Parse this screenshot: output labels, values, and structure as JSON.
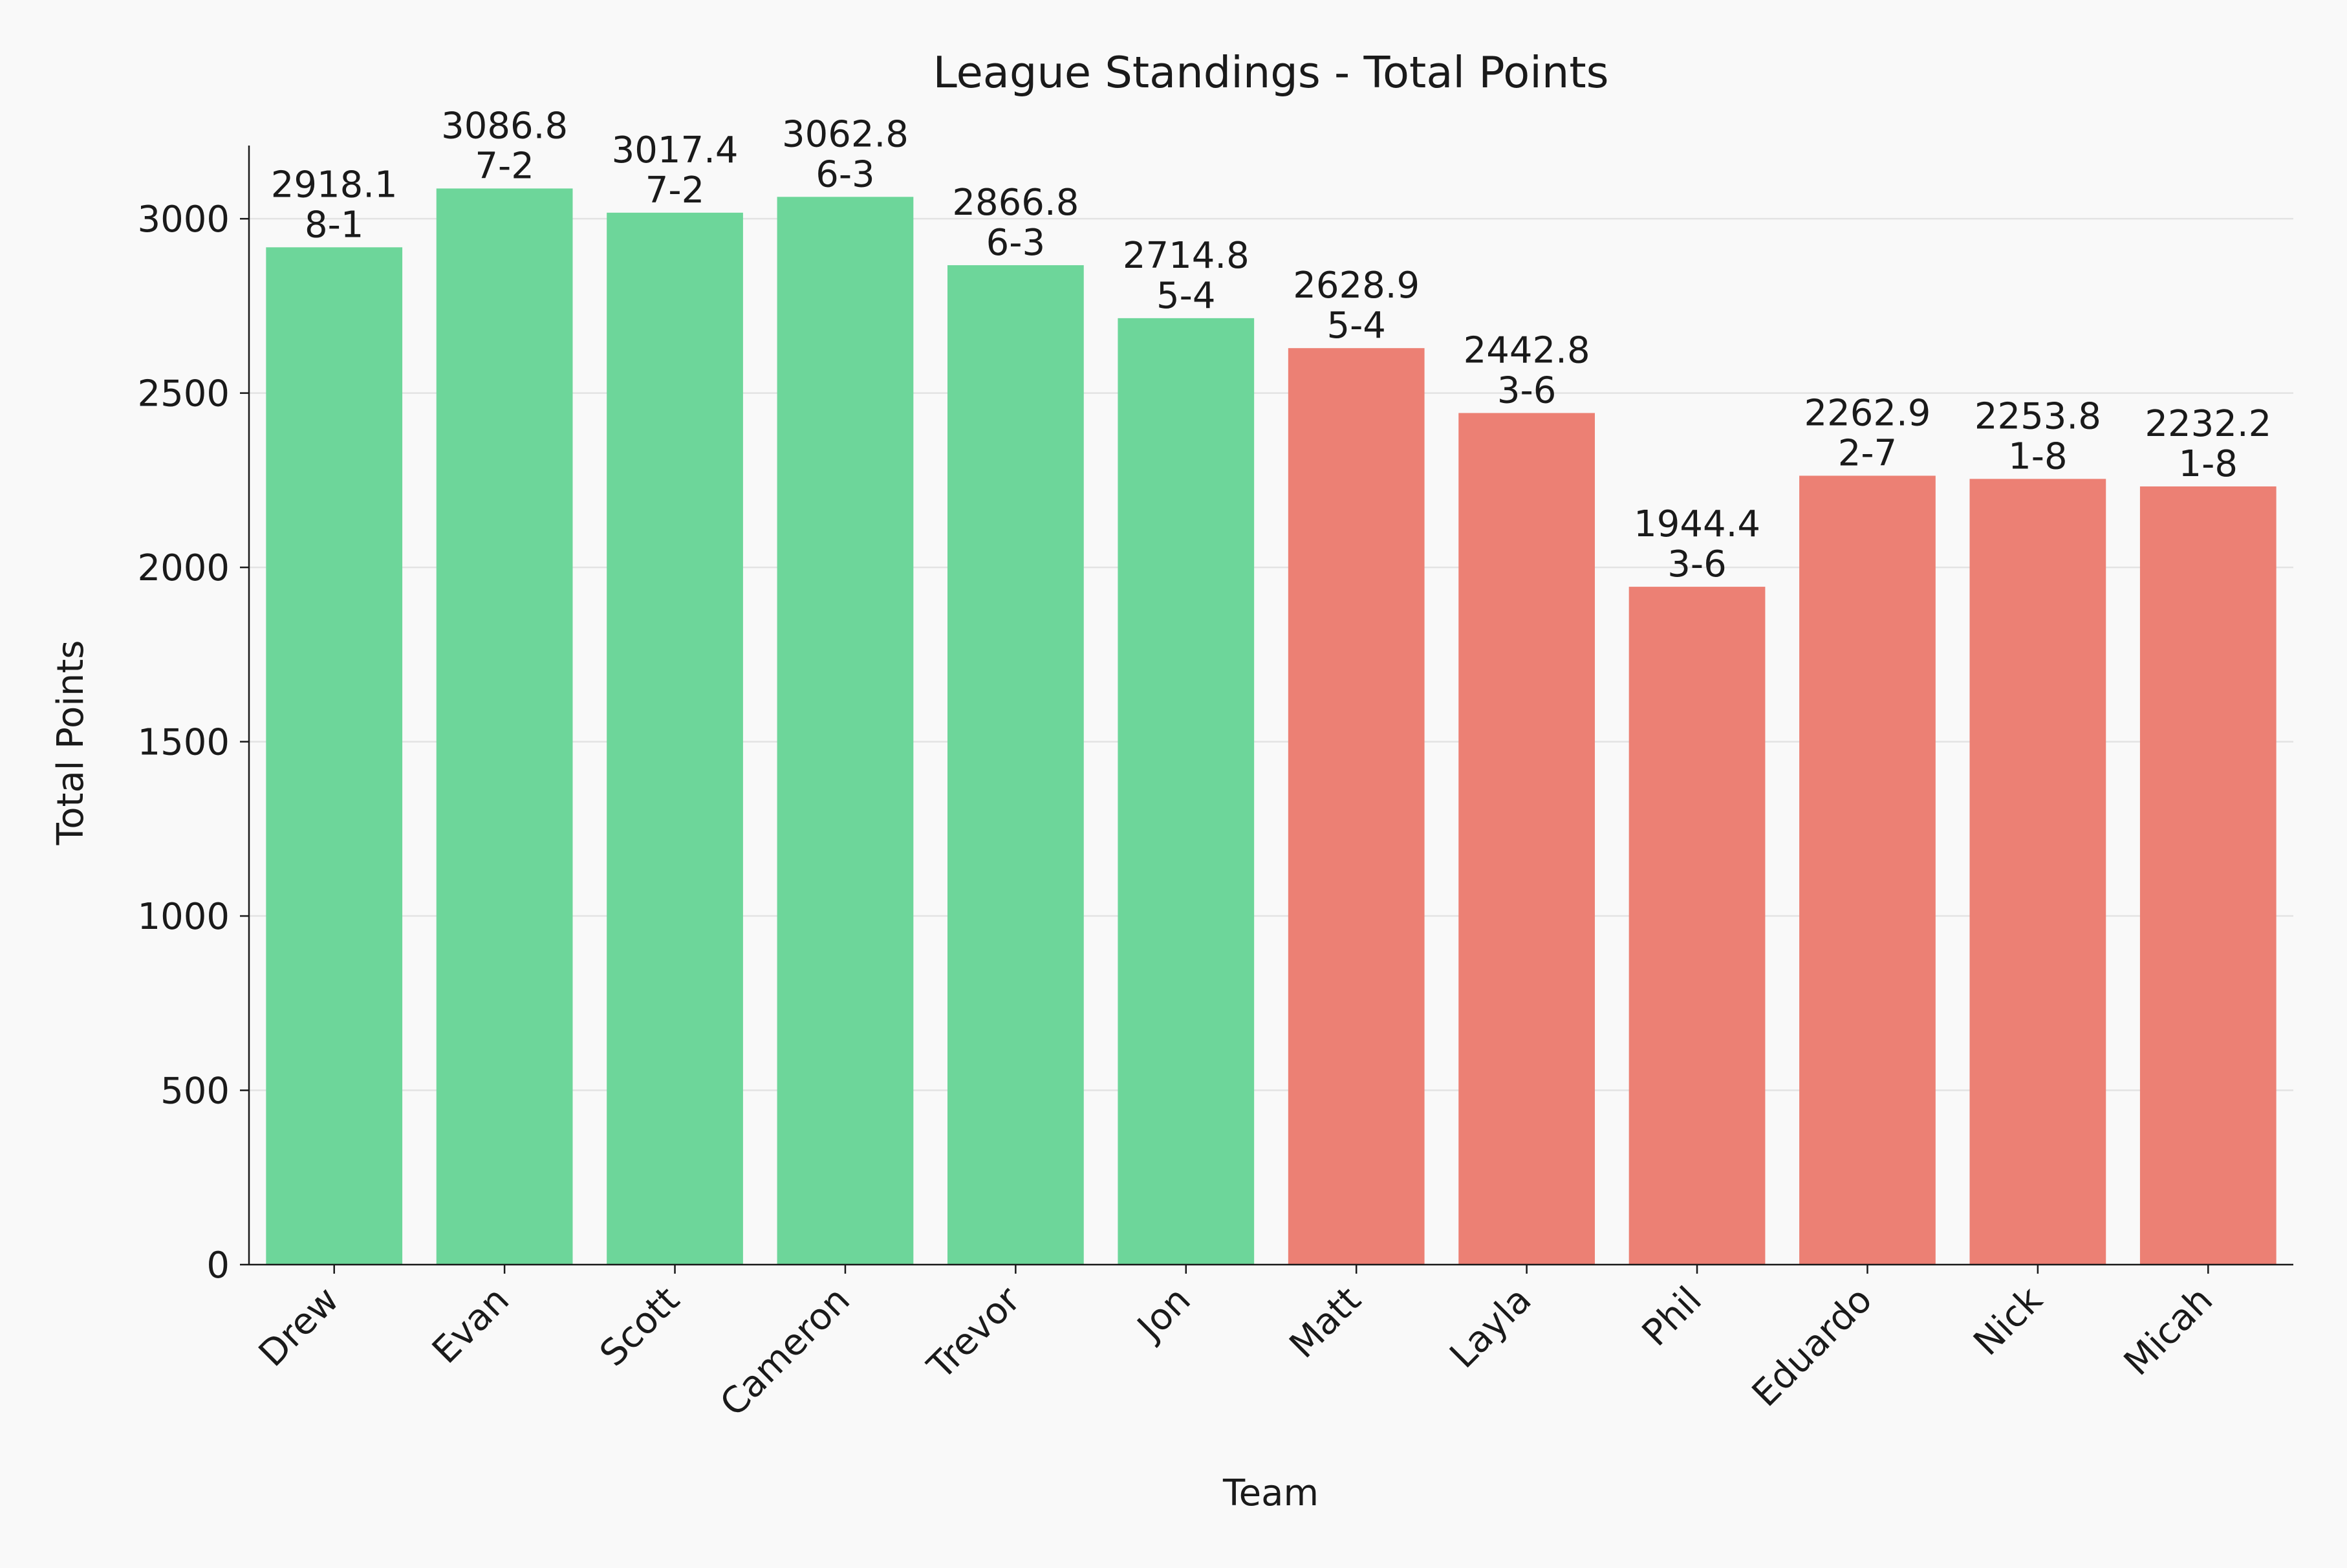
{
  "chart_data": {
    "type": "bar",
    "title": "League Standings - Total Points",
    "xlabel": "Team",
    "ylabel": "Total Points",
    "ylim": [
      0,
      3210
    ],
    "yticks": [
      0,
      500,
      1000,
      1500,
      2000,
      2500,
      3000
    ],
    "grid": "y",
    "categories": [
      "Drew",
      "Evan",
      "Scott",
      "Cameron",
      "Trevor",
      "Jon",
      "Matt",
      "Layla",
      "Phil",
      "Eduardo",
      "Nick",
      "Micah"
    ],
    "values": [
      2918.1,
      3086.8,
      3017.4,
      3062.8,
      2866.8,
      2714.8,
      2628.9,
      2442.8,
      1944.4,
      2262.9,
      2253.8,
      2232.2
    ],
    "records": [
      "8-1",
      "7-2",
      "7-2",
      "6-3",
      "6-3",
      "5-4",
      "5-4",
      "3-6",
      "3-6",
      "2-7",
      "1-8",
      "1-8"
    ],
    "bar_colors": [
      "#6dd69a",
      "#6dd69a",
      "#6dd69a",
      "#6dd69a",
      "#6dd69a",
      "#6dd69a",
      "#ec8074",
      "#ec8074",
      "#ec8074",
      "#ec8074",
      "#ec8074",
      "#ec8074"
    ]
  }
}
